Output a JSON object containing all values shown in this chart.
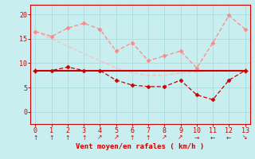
{
  "x": [
    0,
    1,
    2,
    3,
    4,
    5,
    6,
    7,
    8,
    9,
    10,
    11,
    12,
    13
  ],
  "line_mean_solid": [
    8.5,
    8.5,
    8.5,
    8.5,
    8.5,
    8.5,
    8.5,
    8.5,
    8.5,
    8.5,
    8.5,
    8.5,
    8.5,
    8.5
  ],
  "line_red_dashed": [
    8.5,
    8.5,
    9.2,
    8.5,
    8.5,
    6.5,
    5.5,
    5.2,
    5.2,
    6.5,
    3.5,
    2.5,
    6.5,
    8.5
  ],
  "line_pink_upper": [
    16.5,
    15.5,
    17.2,
    18.2,
    17.0,
    12.5,
    14.2,
    10.5,
    11.5,
    12.5,
    9.0,
    14.2,
    19.8,
    17.0
  ],
  "line_pink_lower": [
    16.5,
    15.0,
    13.5,
    12.0,
    10.5,
    9.0,
    8.0,
    7.5,
    7.5,
    8.0,
    8.2,
    8.5,
    8.5,
    8.5
  ],
  "xlim": [
    -0.3,
    13.3
  ],
  "ylim": [
    -2.5,
    22
  ],
  "yticks": [
    0,
    5,
    10,
    15,
    20
  ],
  "xticks": [
    0,
    1,
    2,
    3,
    4,
    5,
    6,
    7,
    8,
    9,
    10,
    11,
    12,
    13
  ],
  "xlabel": "Vent moyen/en rafales ( km/h )",
  "bg_color": "#c8eef0",
  "grid_color": "#a8dce0",
  "dark_red": "#cc0000",
  "light_red": "#ff8888",
  "pink": "#ffbbbb",
  "axis_color": "#cc0000",
  "text_color": "#cc0000",
  "arrow_symbols": [
    "↑",
    "↑",
    "↑",
    "↑",
    "↗",
    "↗",
    "↑",
    "↑",
    "↗",
    "↗",
    "→",
    "←",
    "←",
    "↘"
  ]
}
